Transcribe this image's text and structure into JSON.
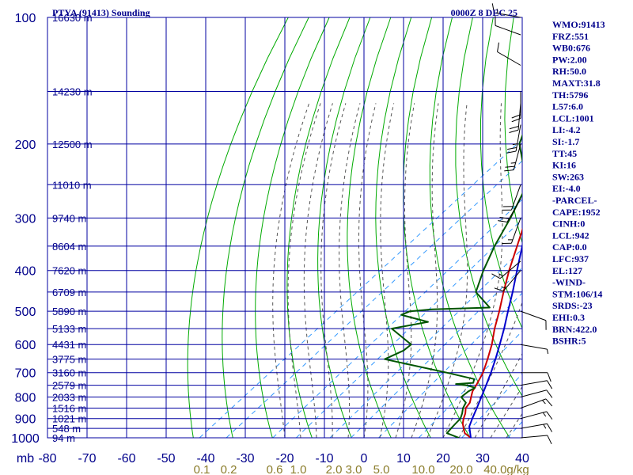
{
  "header": {
    "station": "PTYA (91413) Sounding",
    "time": "0000Z  8 DEC 25"
  },
  "colors": {
    "grid": "#0000a0",
    "dry_adiabat": "#00aa00",
    "moist_adiabat": "#555555",
    "mixing_ratio": "#3399ff",
    "temperature": "#cc0000",
    "dewpoint": "#005500",
    "parcel": "#0000cc",
    "wind": "#000000"
  },
  "chart_data": {
    "type": "line",
    "diagram": "skew-T log-P",
    "pressure_axis": {
      "unit": "mb",
      "ticks": [
        100,
        200,
        300,
        400,
        500,
        600,
        700,
        800,
        900,
        1000
      ],
      "range": [
        100,
        1000
      ]
    },
    "temperature_axis": {
      "ticks": [
        -80,
        -70,
        -60,
        -50,
        -40,
        -30,
        -20,
        -10,
        0,
        10,
        20,
        30,
        40
      ],
      "range": [
        -80,
        40
      ]
    },
    "mixing_ratio_axis": {
      "unit": "g/kg",
      "labels": [
        "0.1",
        "0.2",
        "0.6",
        "1.0",
        "2.0",
        "3.0",
        "5.0",
        "10.0",
        "20.0",
        "40.0"
      ]
    },
    "height_labels": [
      {
        "p": 100,
        "label": "16630 m"
      },
      {
        "p": 150,
        "label": "14230 m"
      },
      {
        "p": 200,
        "label": "12500 m"
      },
      {
        "p": 250,
        "label": "11010 m"
      },
      {
        "p": 300,
        "label": "9740 m"
      },
      {
        "p": 350,
        "label": "8604 m"
      },
      {
        "p": 400,
        "label": "7620 m"
      },
      {
        "p": 450,
        "label": "6709 m"
      },
      {
        "p": 500,
        "label": "5890 m"
      },
      {
        "p": 550,
        "label": "5133 m"
      },
      {
        "p": 600,
        "label": "4431 m"
      },
      {
        "p": 650,
        "label": "3775 m"
      },
      {
        "p": 700,
        "label": "3160 m"
      },
      {
        "p": 750,
        "label": "2579 m"
      },
      {
        "p": 800,
        "label": "2033 m"
      },
      {
        "p": 850,
        "label": "1516 m"
      },
      {
        "p": 900,
        "label": "1021 m"
      },
      {
        "p": 950,
        "label": "548 m"
      },
      {
        "p": 1000,
        "label": "94 m"
      }
    ],
    "series": [
      {
        "key": "temperature",
        "points": [
          [
            1000,
            27.0
          ],
          [
            975,
            24.0
          ],
          [
            950,
            22.2
          ],
          [
            925,
            20.4
          ],
          [
            900,
            19.0
          ],
          [
            875,
            17.8
          ],
          [
            850,
            16.2
          ],
          [
            825,
            15.5
          ],
          [
            800,
            14.0
          ],
          [
            775,
            12.5
          ],
          [
            750,
            11.5
          ],
          [
            700,
            9.2
          ],
          [
            650,
            6.0
          ],
          [
            600,
            2.4
          ],
          [
            550,
            -2.0
          ],
          [
            500,
            -6.4
          ],
          [
            450,
            -11.5
          ],
          [
            400,
            -17.0
          ],
          [
            350,
            -22.8
          ],
          [
            300,
            -29.5
          ],
          [
            275,
            -33.5
          ],
          [
            250,
            -38.0
          ],
          [
            200,
            -47.5
          ],
          [
            150,
            -59.0
          ],
          [
            130,
            -65.0
          ],
          [
            110,
            -71.5
          ],
          [
            100,
            -74.5
          ]
        ]
      },
      {
        "key": "dewpoint",
        "points": [
          [
            1000,
            24.0
          ],
          [
            975,
            19.5
          ],
          [
            950,
            19.0
          ],
          [
            925,
            18.6
          ],
          [
            900,
            18.2
          ],
          [
            875,
            17.0
          ],
          [
            850,
            15.5
          ],
          [
            825,
            14.5
          ],
          [
            800,
            11.5
          ],
          [
            775,
            11.5
          ],
          [
            760,
            12.0
          ],
          [
            750,
            9.0
          ],
          [
            745,
            6.0
          ],
          [
            740,
            10.0
          ],
          [
            725,
            9.0
          ],
          [
            700,
            0.0
          ],
          [
            650,
            -20.0
          ],
          [
            620,
            -18.0
          ],
          [
            600,
            -18.0
          ],
          [
            550,
            -28.0
          ],
          [
            530,
            -21.0
          ],
          [
            510,
            -30.0
          ],
          [
            500,
            -29.0
          ],
          [
            495,
            -24.0
          ],
          [
            490,
            -10.0
          ],
          [
            450,
            -18.5
          ],
          [
            400,
            -23.5
          ],
          [
            350,
            -28.5
          ],
          [
            300,
            -33.5
          ],
          [
            250,
            -40.0
          ],
          [
            200,
            -55.0
          ],
          [
            150,
            -67.0
          ],
          [
            130,
            -75.0
          ]
        ]
      },
      {
        "key": "parcel",
        "points": [
          [
            1000,
            27.0
          ],
          [
            940,
            23.0
          ],
          [
            900,
            21.2
          ],
          [
            850,
            19.0
          ],
          [
            800,
            16.6
          ],
          [
            750,
            14.0
          ],
          [
            700,
            11.2
          ],
          [
            650,
            8.0
          ],
          [
            600,
            4.4
          ],
          [
            550,
            0.4
          ],
          [
            500,
            -4.2
          ],
          [
            450,
            -9.2
          ],
          [
            400,
            -15.0
          ],
          [
            350,
            -21.5
          ],
          [
            300,
            -29.0
          ],
          [
            250,
            -38.5
          ],
          [
            200,
            -49.5
          ],
          [
            150,
            -62.0
          ],
          [
            127,
            -68.0
          ],
          [
            100,
            -76.0
          ]
        ]
      }
    ],
    "wind_barbs": [
      {
        "p": 1000,
        "dir": 85,
        "spd": 10
      },
      {
        "p": 950,
        "dir": 80,
        "spd": 15
      },
      {
        "p": 900,
        "dir": 75,
        "spd": 15
      },
      {
        "p": 850,
        "dir": 70,
        "spd": 15
      },
      {
        "p": 800,
        "dir": 75,
        "spd": 10
      },
      {
        "p": 750,
        "dir": 80,
        "spd": 10
      },
      {
        "p": 700,
        "dir": 90,
        "spd": 10
      },
      {
        "p": 600,
        "dir": 100,
        "spd": 5
      },
      {
        "p": 500,
        "dir": 110,
        "spd": 10
      },
      {
        "p": 400,
        "dir": 220,
        "spd": 15
      },
      {
        "p": 380,
        "dir": 230,
        "spd": 15
      },
      {
        "p": 300,
        "dir": 200,
        "spd": 15
      },
      {
        "p": 270,
        "dir": 210,
        "spd": 20
      },
      {
        "p": 250,
        "dir": 200,
        "spd": 20
      },
      {
        "p": 200,
        "dir": 195,
        "spd": 25
      },
      {
        "p": 180,
        "dir": 190,
        "spd": 25
      },
      {
        "p": 160,
        "dir": 185,
        "spd": 20
      },
      {
        "p": 150,
        "dir": 180,
        "spd": 20
      },
      {
        "p": 130,
        "dir": 300,
        "spd": 10
      },
      {
        "p": 110,
        "dir": 290,
        "spd": 10
      },
      {
        "p": 100,
        "dir": 280,
        "spd": 15
      }
    ]
  },
  "indices": [
    "WMO:91413",
    "FRZ:551",
    "WB0:676",
    "PW:2.00",
    "RH:50.0",
    "MAXT:31.8",
    "TH:5796",
    "L57:6.0",
    "LCL:1001",
    "LI:-4.2",
    "SI:-1.7",
    "TT:45",
    "KI:16",
    "SW:263",
    "EI:-4.0",
    "-PARCEL-",
    "CAPE:1952",
    "CINH:0",
    "LCL:942",
    "CAP:0.0",
    "LFC:937",
    "EL:127",
    "-WIND-",
    "STM:106/14",
    "SRDS:-23",
    "EHI:0.3",
    "BRN:422.0",
    "BSHR:5"
  ]
}
